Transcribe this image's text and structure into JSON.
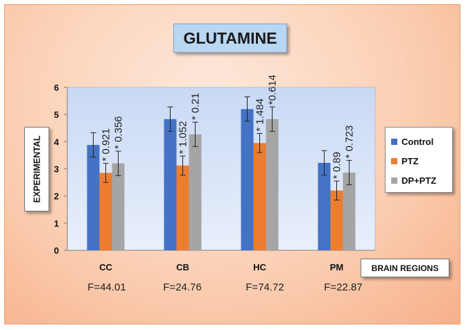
{
  "chart_data": {
    "type": "bar",
    "title": "GLUTAMINE",
    "ylabel": "EXPERIMENTAL",
    "xlabel": "BRAIN REGIONS",
    "ylim": [
      0,
      6
    ],
    "yticks": [
      "0",
      "1",
      "2",
      "3",
      "4",
      "5",
      "6"
    ],
    "categories": [
      "CC",
      "CB",
      "HC",
      "PM"
    ],
    "series": [
      {
        "name": "Control",
        "color": "#4472c4",
        "values": [
          3.88,
          4.83,
          5.2,
          3.22
        ],
        "errors": [
          0.45,
          0.45,
          0.45,
          0.45
        ],
        "annotations": [
          "",
          "",
          "",
          ""
        ]
      },
      {
        "name": "PTZ",
        "color": "#ed7d31",
        "values": [
          2.85,
          3.12,
          3.95,
          2.2
        ],
        "errors": [
          0.35,
          0.35,
          0.35,
          0.35
        ],
        "annotations": [
          "* 0.921",
          "* 1.052",
          "* 1.484",
          "* 0.89"
        ]
      },
      {
        "name": "DP+PTZ",
        "color": "#a5a5a5",
        "values": [
          3.2,
          4.27,
          4.83,
          2.86
        ],
        "errors": [
          0.45,
          0.45,
          0.45,
          0.45
        ],
        "annotations": [
          "* 0.356",
          "* 0.21",
          "*0.614",
          "* 0.723"
        ]
      }
    ],
    "f_stats": [
      "F=44.01",
      "F=24.76",
      "F=74.72",
      "F=22.87"
    ],
    "legend_position": "right",
    "grid": false
  }
}
